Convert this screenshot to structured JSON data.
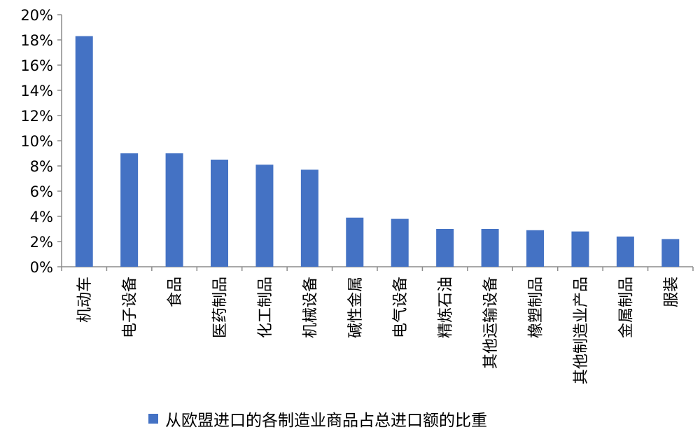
{
  "chart_data": {
    "type": "bar",
    "title": "",
    "xlabel": "",
    "ylabel": "",
    "categories": [
      "机动车",
      "电子设备",
      "食品",
      "医药制品",
      "化工制品",
      "机械设备",
      "碱性金属",
      "电气设备",
      "精炼石油",
      "其他运输设备",
      "橡塑制品",
      "其他制造业产品",
      "金属制品",
      "服装"
    ],
    "series": [
      {
        "name": "从欧盟进口的各制造业商品占总进口额的比重",
        "values": [
          18.3,
          9.0,
          9.0,
          8.5,
          8.1,
          7.7,
          3.9,
          3.8,
          3.0,
          3.0,
          2.9,
          2.8,
          2.4,
          2.2
        ]
      }
    ],
    "ylim": [
      0,
      20
    ],
    "yticks": [
      0,
      2,
      4,
      6,
      8,
      10,
      12,
      14,
      16,
      18,
      20
    ],
    "ytick_labels": [
      "0%",
      "2%",
      "4%",
      "6%",
      "8%",
      "10%",
      "12%",
      "14%",
      "16%",
      "18%",
      "20%"
    ],
    "grid": false,
    "legend_position": "bottom",
    "colors": {
      "bar": "#4472C4",
      "axis": "#8c8c8c"
    }
  }
}
